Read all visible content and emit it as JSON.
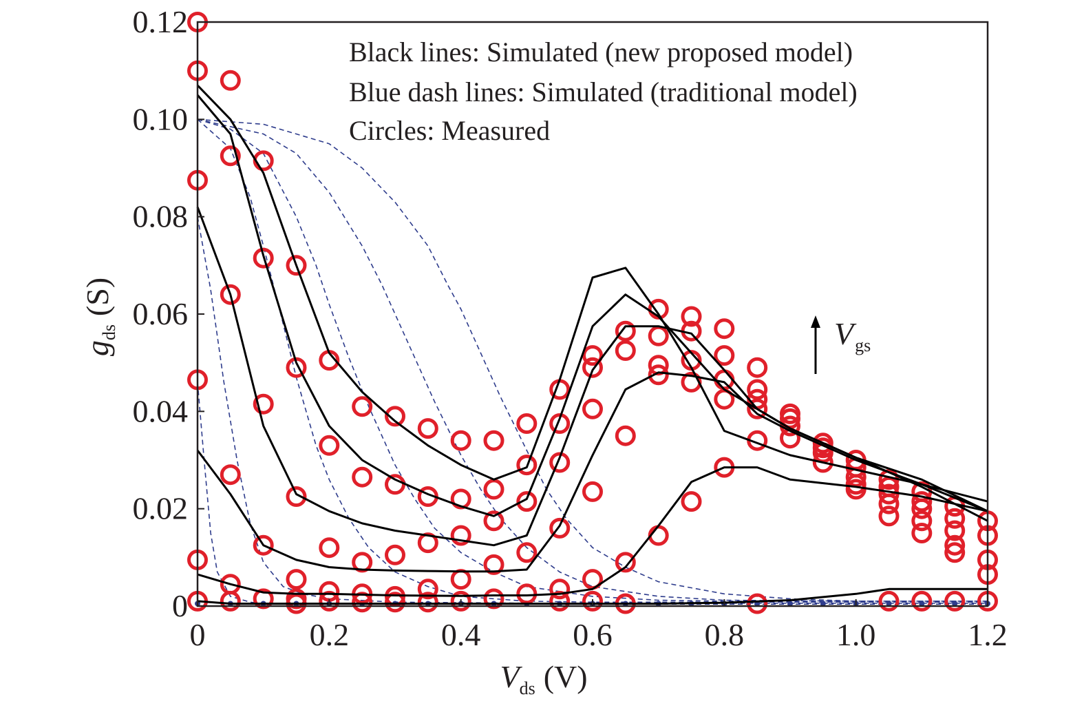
{
  "chart_data": {
    "type": "line",
    "xlabel": {
      "symbol": "V",
      "subscript": "ds",
      "unit": "(V)"
    },
    "ylabel": {
      "symbol": "g",
      "subscript": "ds",
      "unit": "(S)"
    },
    "xlim": [
      0,
      1.2
    ],
    "ylim": [
      0,
      0.12
    ],
    "xticks": [
      "0",
      "0.2",
      "0.4",
      "0.6",
      "0.8",
      "1.0",
      "1.2"
    ],
    "yticks": [
      "0",
      "0.02",
      "0.04",
      "0.06",
      "0.08",
      "0.10",
      "0.12"
    ],
    "legend": {
      "position": "top-right",
      "lines": [
        "Black lines: Simulated (new proposed model)",
        "Blue dash lines: Simulated (traditional model)",
        "Circles: Measured"
      ]
    },
    "annotation": {
      "symbol": "V",
      "subscript": "gs",
      "arrow": "up"
    },
    "colors": {
      "simulated_new": "#000000",
      "simulated_traditional": "#2e3c8c",
      "measured": "#e0202a",
      "axis": "#231f20"
    },
    "simulated_new": [
      {
        "name": "Vgs-1",
        "x": [
          0,
          0.05,
          0.1,
          0.15,
          0.2,
          0.3,
          0.4,
          0.45,
          0.5,
          0.55,
          0.6,
          0.65,
          0.7,
          0.8,
          0.9,
          1.0,
          1.05,
          1.1,
          1.2
        ],
        "y": [
          0.001,
          0.0005,
          0.0005,
          0.0005,
          0.0005,
          0.0005,
          0.0005,
          0.0005,
          0.0005,
          0.0005,
          0.0005,
          0.0005,
          0.0005,
          0.0007,
          0.0012,
          0.0025,
          0.0035,
          0.0035,
          0.0035
        ]
      },
      {
        "name": "Vgs-2",
        "x": [
          0,
          0.05,
          0.1,
          0.15,
          0.2,
          0.3,
          0.4,
          0.45,
          0.5,
          0.55,
          0.6,
          0.65,
          0.7,
          0.75,
          0.8,
          0.85,
          0.9,
          1.0,
          1.1,
          1.2
        ],
        "y": [
          0.0065,
          0.0045,
          0.0028,
          0.0025,
          0.0025,
          0.0022,
          0.0021,
          0.0022,
          0.0022,
          0.0025,
          0.0035,
          0.008,
          0.0165,
          0.0255,
          0.0285,
          0.0285,
          0.026,
          0.0245,
          0.0225,
          0.0195
        ]
      },
      {
        "name": "Vgs-3",
        "x": [
          0,
          0.05,
          0.1,
          0.15,
          0.2,
          0.25,
          0.3,
          0.35,
          0.4,
          0.45,
          0.5,
          0.55,
          0.6,
          0.65,
          0.7,
          0.75,
          0.8,
          0.85,
          0.9,
          1.0,
          1.1,
          1.2
        ],
        "y": [
          0.032,
          0.023,
          0.0125,
          0.0095,
          0.008,
          0.0075,
          0.0073,
          0.0072,
          0.0071,
          0.0071,
          0.0075,
          0.0165,
          0.031,
          0.0445,
          0.048,
          0.0473,
          0.046,
          0.0395,
          0.036,
          0.03,
          0.025,
          0.0195
        ]
      },
      {
        "name": "Vgs-4",
        "x": [
          0,
          0.05,
          0.1,
          0.15,
          0.2,
          0.25,
          0.3,
          0.35,
          0.4,
          0.45,
          0.5,
          0.55,
          0.6,
          0.65,
          0.7,
          0.75,
          0.8,
          0.85,
          0.9,
          1.0,
          1.1,
          1.2
        ],
        "y": [
          0.082,
          0.064,
          0.037,
          0.023,
          0.0195,
          0.017,
          0.0155,
          0.0145,
          0.0135,
          0.0125,
          0.0145,
          0.0305,
          0.0485,
          0.0575,
          0.0575,
          0.056,
          0.0485,
          0.0405,
          0.0365,
          0.0305,
          0.0245,
          0.0175
        ]
      },
      {
        "name": "Vgs-5",
        "x": [
          0,
          0.05,
          0.1,
          0.15,
          0.2,
          0.25,
          0.3,
          0.35,
          0.4,
          0.45,
          0.5,
          0.55,
          0.6,
          0.65,
          0.7,
          0.75,
          0.8,
          0.9,
          1.0,
          1.1,
          1.2
        ],
        "y": [
          0.105,
          0.097,
          0.072,
          0.05,
          0.037,
          0.03,
          0.026,
          0.023,
          0.0205,
          0.0185,
          0.022,
          0.0385,
          0.0575,
          0.064,
          0.0595,
          0.052,
          0.0445,
          0.0365,
          0.0305,
          0.026,
          0.0195
        ]
      },
      {
        "name": "Vgs-6",
        "x": [
          0,
          0.05,
          0.1,
          0.15,
          0.2,
          0.25,
          0.3,
          0.35,
          0.4,
          0.45,
          0.5,
          0.55,
          0.6,
          0.65,
          0.7,
          0.75,
          0.8,
          0.9,
          1.0,
          1.1,
          1.2
        ],
        "y": [
          0.107,
          0.1,
          0.089,
          0.07,
          0.052,
          0.044,
          0.038,
          0.033,
          0.029,
          0.026,
          0.0285,
          0.0465,
          0.0675,
          0.0695,
          0.06,
          0.049,
          0.036,
          0.031,
          0.028,
          0.025,
          0.0215
        ]
      }
    ],
    "simulated_traditional": [
      {
        "name": "Vgs-1",
        "x": [
          0,
          0.01,
          0.02,
          0.03,
          0.05,
          0.08,
          0.1,
          0.15,
          0.2,
          0.3,
          0.5,
          0.7,
          0.9,
          1.2
        ],
        "y": [
          0.046,
          0.03,
          0.015,
          0.007,
          0.002,
          0.0008,
          0.0005,
          0.0004,
          0.0004,
          0.0004,
          0.0004,
          0.0004,
          0.0004,
          0.0004
        ]
      },
      {
        "name": "Vgs-2",
        "x": [
          0,
          0.02,
          0.04,
          0.06,
          0.08,
          0.1,
          0.13,
          0.16,
          0.2,
          0.3,
          0.5,
          0.7,
          0.9,
          1.2
        ],
        "y": [
          0.08,
          0.065,
          0.046,
          0.03,
          0.017,
          0.009,
          0.004,
          0.0025,
          0.0015,
          0.0008,
          0.0006,
          0.0006,
          0.0006,
          0.0006
        ]
      },
      {
        "name": "Vgs-3",
        "x": [
          0,
          0.05,
          0.08,
          0.1,
          0.13,
          0.15,
          0.18,
          0.2,
          0.23,
          0.26,
          0.3,
          0.35,
          0.4,
          0.5,
          0.6,
          0.8,
          1.0,
          1.2
        ],
        "y": [
          0.1,
          0.094,
          0.084,
          0.074,
          0.058,
          0.047,
          0.033,
          0.026,
          0.018,
          0.012,
          0.007,
          0.004,
          0.002,
          0.001,
          0.0008,
          0.0008,
          0.0008,
          0.0008
        ]
      },
      {
        "name": "Vgs-4",
        "x": [
          0,
          0.05,
          0.1,
          0.15,
          0.18,
          0.2,
          0.23,
          0.26,
          0.3,
          0.33,
          0.36,
          0.4,
          0.45,
          0.5,
          0.6,
          0.7,
          0.8,
          1.0,
          1.2
        ],
        "y": [
          0.1,
          0.098,
          0.093,
          0.08,
          0.07,
          0.062,
          0.051,
          0.041,
          0.029,
          0.022,
          0.016,
          0.011,
          0.007,
          0.004,
          0.002,
          0.0012,
          0.001,
          0.001,
          0.001
        ]
      },
      {
        "name": "Vgs-5",
        "x": [
          0,
          0.1,
          0.15,
          0.2,
          0.25,
          0.28,
          0.3,
          0.33,
          0.36,
          0.4,
          0.43,
          0.46,
          0.5,
          0.55,
          0.6,
          0.7,
          0.8,
          1.0,
          1.2
        ],
        "y": [
          0.1,
          0.097,
          0.093,
          0.085,
          0.074,
          0.066,
          0.06,
          0.051,
          0.042,
          0.031,
          0.024,
          0.018,
          0.012,
          0.007,
          0.004,
          0.002,
          0.0012,
          0.001,
          0.001
        ]
      },
      {
        "name": "Vgs-6",
        "x": [
          0,
          0.1,
          0.2,
          0.25,
          0.3,
          0.35,
          0.38,
          0.4,
          0.43,
          0.46,
          0.5,
          0.53,
          0.56,
          0.6,
          0.65,
          0.7,
          0.8,
          0.9,
          1.0,
          1.2
        ],
        "y": [
          0.1,
          0.099,
          0.095,
          0.09,
          0.083,
          0.074,
          0.066,
          0.061,
          0.052,
          0.043,
          0.032,
          0.024,
          0.018,
          0.012,
          0.008,
          0.005,
          0.0025,
          0.0015,
          0.001,
          0.001
        ]
      }
    ],
    "measured": {
      "x": [
        0,
        0,
        0,
        0,
        0,
        0,
        0.05,
        0.05,
        0.05,
        0.05,
        0.05,
        0.05,
        0.1,
        0.1,
        0.1,
        0.1,
        0.1,
        0.15,
        0.15,
        0.15,
        0.15,
        0.15,
        0.15,
        0.2,
        0.2,
        0.2,
        0.2,
        0.2,
        0.25,
        0.25,
        0.25,
        0.25,
        0.25,
        0.3,
        0.3,
        0.3,
        0.3,
        0.3,
        0.35,
        0.35,
        0.35,
        0.35,
        0.35,
        0.4,
        0.4,
        0.4,
        0.4,
        0.4,
        0.45,
        0.45,
        0.45,
        0.45,
        0.45,
        0.5,
        0.5,
        0.5,
        0.5,
        0.5,
        0.55,
        0.55,
        0.55,
        0.55,
        0.55,
        0.55,
        0.6,
        0.6,
        0.6,
        0.6,
        0.6,
        0.6,
        0.65,
        0.65,
        0.65,
        0.65,
        0.65,
        0.7,
        0.7,
        0.7,
        0.7,
        0.7,
        0.75,
        0.75,
        0.75,
        0.75,
        0.75,
        0.8,
        0.8,
        0.8,
        0.8,
        0.8,
        0.85,
        0.85,
        0.85,
        0.85,
        0.85,
        0.85,
        0.9,
        0.9,
        0.9,
        0.9,
        0.95,
        0.95,
        0.95,
        0.95,
        1.0,
        1.0,
        1.0,
        1.0,
        1.0,
        1.05,
        1.05,
        1.05,
        1.05,
        1.05,
        1.05,
        1.1,
        1.1,
        1.1,
        1.1,
        1.1,
        1.1,
        1.15,
        1.15,
        1.15,
        1.15,
        1.15,
        1.15,
        1.2,
        1.2,
        1.2,
        1.2,
        1.2
      ],
      "y": [
        0.12,
        0.11,
        0.0875,
        0.0465,
        0.0095,
        0.001,
        0.108,
        0.0925,
        0.064,
        0.027,
        0.0045,
        0.001,
        0.0915,
        0.0715,
        0.0415,
        0.0125,
        0.0015,
        0.07,
        0.049,
        0.0225,
        0.0055,
        0.0015,
        0.0005,
        0.0505,
        0.033,
        0.012,
        0.003,
        0.001,
        0.041,
        0.0265,
        0.009,
        0.0025,
        0.0008,
        0.039,
        0.025,
        0.0105,
        0.002,
        0.0008,
        0.0365,
        0.0225,
        0.013,
        0.0035,
        0.0008,
        0.034,
        0.022,
        0.0145,
        0.0055,
        0.001,
        0.034,
        0.024,
        0.0175,
        0.0085,
        0.0015,
        0.0375,
        0.029,
        0.0215,
        0.011,
        0.0025,
        0.0445,
        0.0375,
        0.0295,
        0.016,
        0.0035,
        0.001,
        0.0515,
        0.049,
        0.0405,
        0.0235,
        0.0055,
        0.001,
        0.0565,
        0.0525,
        0.035,
        0.009,
        0.0005,
        0.061,
        0.0555,
        0.0495,
        0.0475,
        0.0145,
        0.0595,
        0.0565,
        0.0505,
        0.046,
        0.0215,
        0.057,
        0.0515,
        0.0465,
        0.0425,
        0.0285,
        0.049,
        0.0445,
        0.0425,
        0.0405,
        0.034,
        0.0005,
        0.0395,
        0.0385,
        0.037,
        0.0345,
        0.0335,
        0.0325,
        0.0315,
        0.0295,
        0.03,
        0.0285,
        0.0265,
        0.025,
        0.024,
        0.026,
        0.0245,
        0.023,
        0.021,
        0.0185,
        0.001,
        0.0235,
        0.0215,
        0.02,
        0.0175,
        0.015,
        0.001,
        0.0205,
        0.018,
        0.0155,
        0.0125,
        0.011,
        0.001,
        0.0175,
        0.0145,
        0.0095,
        0.0065,
        0.001
      ]
    }
  }
}
